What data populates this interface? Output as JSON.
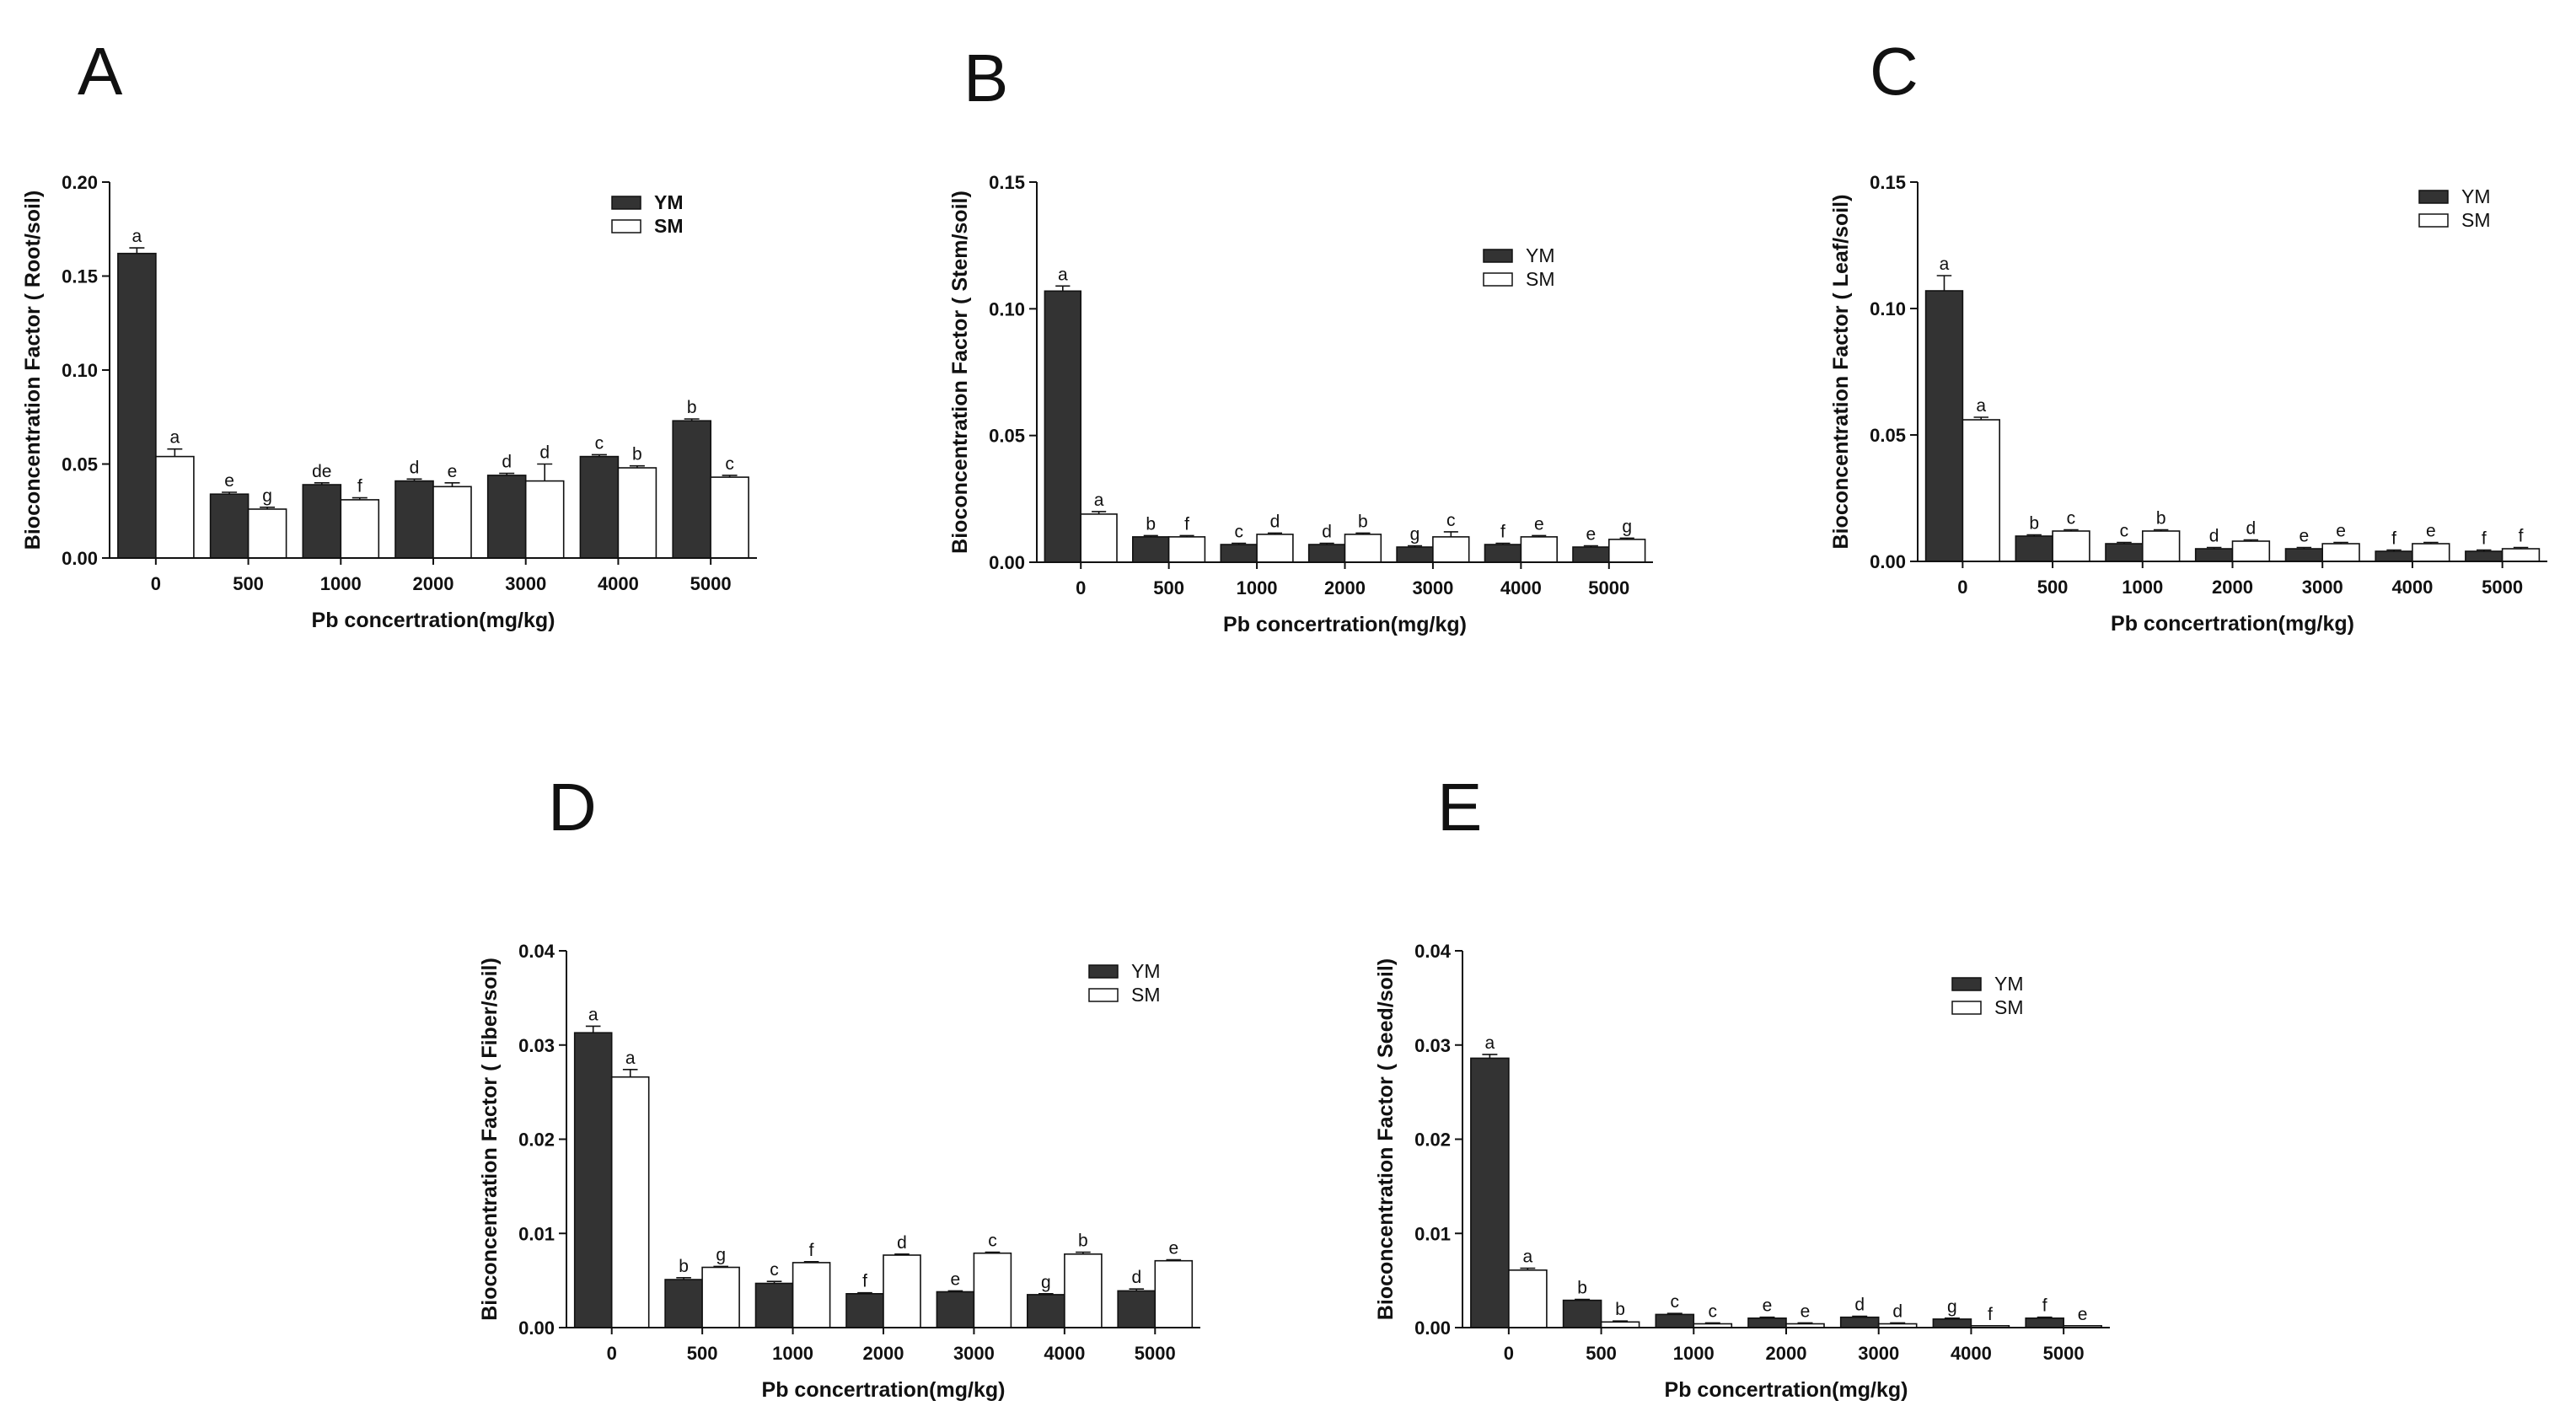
{
  "colors": {
    "ym_fill": "#333333",
    "sm_fill": "#ffffff",
    "stroke": "#111111",
    "background": "#ffffff"
  },
  "chart_data": [
    {
      "panel": "A",
      "type": "bar",
      "ylabel": "Bioconcentration Factor (  Root/soil)",
      "xlabel": "Pb concertration(mg/kg)",
      "categories": [
        "0",
        "500",
        "1000",
        "2000",
        "3000",
        "4000",
        "5000"
      ],
      "ylim": [
        0,
        0.2
      ],
      "yticks": [
        "0.00",
        "0.05",
        "0.10",
        "0.15",
        "0.20"
      ],
      "legend_position": "top-right",
      "legend_bold": true,
      "series": [
        {
          "name": "YM",
          "values": [
            0.162,
            0.034,
            0.039,
            0.041,
            0.044,
            0.054,
            0.073
          ],
          "errors": [
            0.003,
            0.001,
            0.001,
            0.001,
            0.001,
            0.001,
            0.001
          ],
          "letters": [
            "a",
            "e",
            "de",
            "d",
            "d",
            "c",
            "b"
          ]
        },
        {
          "name": "SM",
          "values": [
            0.054,
            0.026,
            0.031,
            0.038,
            0.041,
            0.048,
            0.043
          ],
          "errors": [
            0.004,
            0.001,
            0.001,
            0.002,
            0.009,
            0.001,
            0.001
          ],
          "letters": [
            "a",
            "g",
            "f",
            "e",
            "d",
            "b",
            "c"
          ]
        }
      ]
    },
    {
      "panel": "B",
      "type": "bar",
      "ylabel": "Bioconcentration Factor ( Stem/soil)",
      "xlabel": "Pb concertration(mg/kg)",
      "categories": [
        "0",
        "500",
        "1000",
        "2000",
        "3000",
        "4000",
        "5000"
      ],
      "ylim": [
        0,
        0.15
      ],
      "yticks": [
        "0.00",
        "0.05",
        "0.10",
        "0.15"
      ],
      "legend_position": "upper-right",
      "legend_bold": false,
      "series": [
        {
          "name": "YM",
          "values": [
            0.107,
            0.01,
            0.007,
            0.007,
            0.006,
            0.007,
            0.006
          ],
          "errors": [
            0.002,
            0.0005,
            0.0005,
            0.0005,
            0.0005,
            0.0005,
            0.0005
          ],
          "letters": [
            "a",
            "b",
            "c",
            "d",
            "g",
            "f",
            "e"
          ]
        },
        {
          "name": "SM",
          "values": [
            0.019,
            0.01,
            0.011,
            0.011,
            0.01,
            0.01,
            0.009
          ],
          "errors": [
            0.001,
            0.0005,
            0.0005,
            0.0005,
            0.002,
            0.0005,
            0.0005
          ],
          "letters": [
            "a",
            "f",
            "d",
            "b",
            "c",
            "e",
            "g"
          ]
        }
      ]
    },
    {
      "panel": "C",
      "type": "bar",
      "ylabel": "Bioconcentration Factor ( Leaf/soil)",
      "xlabel": "Pb concertration(mg/kg)",
      "categories": [
        "0",
        "500",
        "1000",
        "2000",
        "3000",
        "4000",
        "5000"
      ],
      "ylim": [
        0,
        0.15
      ],
      "yticks": [
        "0.00",
        "0.05",
        "0.10",
        "0.15"
      ],
      "legend_position": "top-right",
      "legend_bold": false,
      "series": [
        {
          "name": "YM",
          "values": [
            0.107,
            0.01,
            0.007,
            0.005,
            0.005,
            0.004,
            0.004
          ],
          "errors": [
            0.006,
            0.0005,
            0.0005,
            0.0005,
            0.0005,
            0.0005,
            0.0005
          ],
          "letters": [
            "a",
            "b",
            "c",
            "d",
            "e",
            "f",
            "f"
          ]
        },
        {
          "name": "SM",
          "values": [
            0.056,
            0.012,
            0.012,
            0.008,
            0.007,
            0.007,
            0.005
          ],
          "errors": [
            0.001,
            0.0005,
            0.0005,
            0.0005,
            0.0005,
            0.0005,
            0.0005
          ],
          "letters": [
            "a",
            "c",
            "b",
            "d",
            "e",
            "e",
            "f"
          ]
        }
      ]
    },
    {
      "panel": "D",
      "type": "bar",
      "ylabel": "Bioconcentration Factor ( Fiber/soil)",
      "xlabel": "Pb concertration(mg/kg)",
      "categories": [
        "0",
        "500",
        "1000",
        "2000",
        "3000",
        "4000",
        "5000"
      ],
      "ylim": [
        0,
        0.04
      ],
      "yticks": [
        "0.00",
        "0.01",
        "0.02",
        "0.03",
        "0.04"
      ],
      "legend_position": "top-right",
      "legend_bold": false,
      "series": [
        {
          "name": "YM",
          "values": [
            0.0313,
            0.0051,
            0.0047,
            0.0036,
            0.0038,
            0.0035,
            0.0039
          ],
          "errors": [
            0.0007,
            0.0002,
            0.0002,
            0.0001,
            0.0001,
            0.0001,
            0.0002
          ],
          "letters": [
            "a",
            "b",
            "c",
            "f",
            "e",
            "g",
            "d"
          ]
        },
        {
          "name": "SM",
          "values": [
            0.0266,
            0.0064,
            0.0069,
            0.0077,
            0.0079,
            0.0078,
            0.0071
          ],
          "errors": [
            0.0008,
            0.0001,
            0.0001,
            0.0001,
            0.0001,
            0.0002,
            0.0001
          ],
          "letters": [
            "a",
            "g",
            "f",
            "d",
            "c",
            "b",
            "e"
          ]
        }
      ]
    },
    {
      "panel": "E",
      "type": "bar",
      "ylabel": "Bioconcentration Factor ( Seed/soil)",
      "xlabel": "Pb concertration(mg/kg)",
      "categories": [
        "0",
        "500",
        "1000",
        "2000",
        "3000",
        "4000",
        "5000"
      ],
      "ylim": [
        0,
        0.04
      ],
      "yticks": [
        "0.00",
        "0.01",
        "0.02",
        "0.03",
        "0.04"
      ],
      "legend_position": "upper-right",
      "legend_bold": false,
      "series": [
        {
          "name": "YM",
          "values": [
            0.0286,
            0.0029,
            0.0014,
            0.001,
            0.0011,
            0.0009,
            0.001
          ],
          "errors": [
            0.0004,
            0.0001,
            0.0001,
            0.0001,
            0.0001,
            0.0001,
            0.0001
          ],
          "letters": [
            "a",
            "b",
            "c",
            "e",
            "d",
            "g",
            "f"
          ]
        },
        {
          "name": "SM",
          "values": [
            0.0061,
            0.0006,
            0.0004,
            0.0004,
            0.0004,
            0.0002,
            0.0002
          ],
          "errors": [
            0.0002,
            0.0001,
            0.0001,
            0.0001,
            0.0001,
            0.0,
            0.0
          ],
          "letters": [
            "a",
            "b",
            "c",
            "e",
            "d",
            "f",
            "e"
          ]
        }
      ]
    }
  ]
}
